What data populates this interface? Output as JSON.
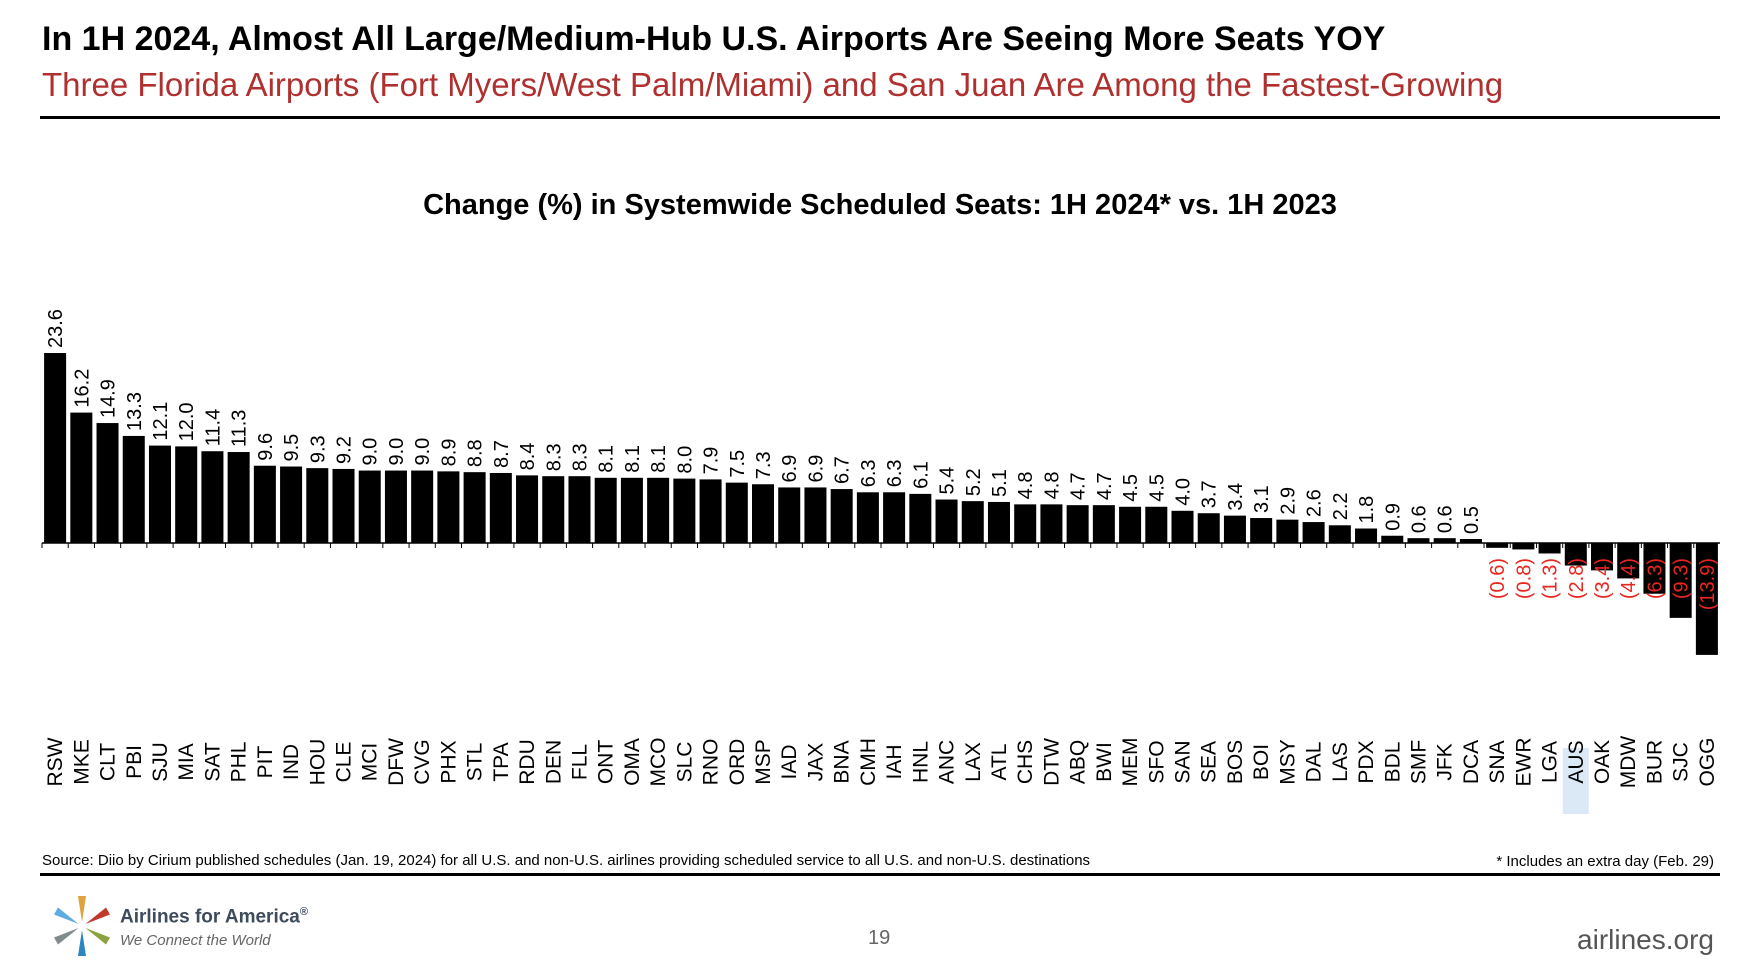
{
  "header": {
    "title": "In 1H 2024, Almost All Large/Medium-Hub U.S. Airports Are Seeing More Seats YOY",
    "subtitle": "Three Florida Airports (Fort Myers/West Palm/Miami) and San Juan Are Among the Fastest-Growing"
  },
  "colors": {
    "bar": "#000000",
    "negative_label": "#e8251f",
    "highlight": "#dbe8f6"
  },
  "chart_data": {
    "type": "bar",
    "title": "Change (%) in Systemwide Scheduled Seats: 1H 2024* vs. 1H 2023",
    "xlabel": "",
    "ylabel": "",
    "ylim": [
      -13.9,
      23.6
    ],
    "categories": [
      "RSW",
      "MKE",
      "CLT",
      "PBI",
      "SJU",
      "MIA",
      "SAT",
      "PHL",
      "PIT",
      "IND",
      "HOU",
      "CLE",
      "MCI",
      "DFW",
      "CVG",
      "PHX",
      "STL",
      "TPA",
      "RDU",
      "DEN",
      "FLL",
      "ONT",
      "OMA",
      "MCO",
      "SLC",
      "RNO",
      "ORD",
      "MSP",
      "IAD",
      "JAX",
      "BNA",
      "CMH",
      "IAH",
      "HNL",
      "ANC",
      "LAX",
      "ATL",
      "CHS",
      "DTW",
      "ABQ",
      "BWI",
      "MEM",
      "SFO",
      "SAN",
      "SEA",
      "BOS",
      "BOI",
      "MSY",
      "DAL",
      "LAS",
      "PDX",
      "BDL",
      "SMF",
      "JFK",
      "DCA",
      "SNA",
      "EWR",
      "LGA",
      "AUS",
      "OAK",
      "MDW",
      "BUR",
      "SJC",
      "OGG"
    ],
    "values": [
      23.6,
      16.2,
      14.9,
      13.3,
      12.1,
      12.0,
      11.4,
      11.3,
      9.6,
      9.5,
      9.3,
      9.2,
      9.0,
      9.0,
      9.0,
      8.9,
      8.8,
      8.7,
      8.4,
      8.3,
      8.3,
      8.1,
      8.1,
      8.1,
      8.0,
      7.9,
      7.5,
      7.3,
      6.9,
      6.9,
      6.7,
      6.3,
      6.3,
      6.1,
      5.4,
      5.2,
      5.1,
      4.8,
      4.8,
      4.7,
      4.7,
      4.5,
      4.5,
      4.0,
      3.7,
      3.4,
      3.1,
      2.9,
      2.6,
      2.2,
      1.8,
      0.9,
      0.6,
      0.6,
      0.5,
      -0.6,
      -0.8,
      -1.3,
      -2.8,
      -3.4,
      -4.4,
      -6.3,
      -9.3,
      -13.9
    ],
    "labels": [
      "23.6",
      "16.2",
      "14.9",
      "13.3",
      "12.1",
      "12.0",
      "11.4",
      "11.3",
      "9.6",
      "9.5",
      "9.3",
      "9.2",
      "9.0",
      "9.0",
      "9.0",
      "8.9",
      "8.8",
      "8.7",
      "8.4",
      "8.3",
      "8.3",
      "8.1",
      "8.1",
      "8.1",
      "8.0",
      "7.9",
      "7.5",
      "7.3",
      "6.9",
      "6.9",
      "6.7",
      "6.3",
      "6.3",
      "6.1",
      "5.4",
      "5.2",
      "5.1",
      "4.8",
      "4.8",
      "4.7",
      "4.7",
      "4.5",
      "4.5",
      "4.0",
      "3.7",
      "3.4",
      "3.1",
      "2.9",
      "2.6",
      "2.2",
      "1.8",
      "0.9",
      "0.6",
      "0.6",
      "0.5",
      "(0.6)",
      "(0.8)",
      "(1.3)",
      "(2.8)",
      "(3.4)",
      "(4.4)",
      "(6.3)",
      "(9.3)",
      "(13.9)"
    ],
    "highlighted_category": "AUS"
  },
  "footer": {
    "source": "Source: Diio by Cirium published schedules (Jan. 19, 2024) for all U.S. and non-U.S. airlines providing scheduled service to all U.S. and non-U.S. destinations",
    "footnote": "* Includes an extra day (Feb. 29)",
    "page_number": "19",
    "brand_name": "Airlines for America",
    "brand_mark": "®",
    "brand_tagline": "We Connect the World",
    "website": "airlines.org"
  }
}
